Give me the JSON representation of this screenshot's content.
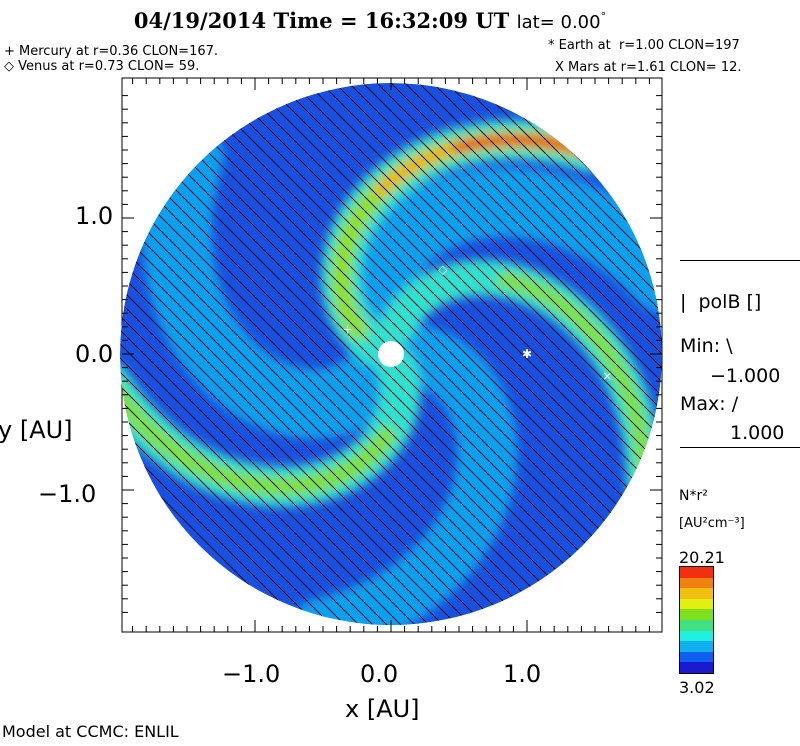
{
  "header": {
    "title": "04/19/2014 Time = 16:32:09 UT",
    "lat": "lat= 0.00",
    "lat_deg": "°"
  },
  "planets": {
    "mercury": "+ Mercury at r=0.36 CLON=167.",
    "venus": "◇ Venus at r=0.73 CLON= 59.",
    "earth": "* Earth at  r=1.00 CLON=197",
    "mars": "X Mars at r=1.61 CLON= 12."
  },
  "legend": {
    "polb_label": "|  polB []",
    "min_label": "Min: \\",
    "min_value": "−1.000",
    "max_label": "Max: /",
    "max_value": "1.000",
    "quantity": "N*r²",
    "units": "[AU²cm⁻³]",
    "cbar_max": "20.21",
    "cbar_min": "3.02"
  },
  "footer": "Model at CCMC: ENLIL",
  "chart_data": {
    "type": "heatmap",
    "title": "04/19/2014 Time = 16:32:09 UT lat= 0.00°",
    "xlabel": "x [AU]",
    "ylabel": "y [AU]",
    "xlim": [
      -2.0,
      2.0
    ],
    "ylim": [
      -2.0,
      2.0
    ],
    "xticks": [
      "−1.0",
      "0.0",
      "1.0"
    ],
    "yticks": [
      "1.0",
      "0.0",
      "−1.0"
    ],
    "colorbar": {
      "min": 3.02,
      "max": 20.21,
      "colors": [
        "#1a1ad0",
        "#1060f0",
        "#10b0f0",
        "#20f0e0",
        "#40e080",
        "#80e020",
        "#e0f010",
        "#f0c010",
        "#f08010",
        "#f03010"
      ]
    },
    "planet_positions": [
      {
        "name": "Mercury",
        "r": 0.36,
        "clon": 167
      },
      {
        "name": "Venus",
        "r": 0.73,
        "clon": 59
      },
      {
        "name": "Earth",
        "r": 1.0,
        "clon": 197
      },
      {
        "name": "Mars",
        "r": 1.61,
        "clon": 12
      }
    ]
  }
}
